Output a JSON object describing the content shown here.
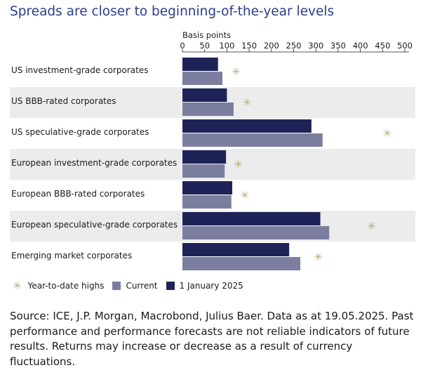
{
  "title": "Spreads are closer to beginning-of-the-year levels",
  "chart_data": {
    "type": "bar",
    "orientation": "horizontal",
    "units_label": "Basis points",
    "xlim": [
      0,
      500
    ],
    "xticks": [
      "0",
      "50",
      "100",
      "150",
      "200",
      "250",
      "300",
      "350",
      "400",
      "450",
      "500"
    ],
    "categories": [
      "US investment-grade corporates",
      "US BBB-rated corporates",
      "US speculative-grade corporates",
      "European investment-grade corporates",
      "European BBB-rated corporates",
      "European speculative-grade corporates",
      "Emerging market corporates"
    ],
    "series": [
      {
        "name": "1 January 2025",
        "color": "#1e2357",
        "values": [
          80,
          100,
          290,
          98,
          112,
          310,
          240
        ]
      },
      {
        "name": "Current",
        "color": "#7c7ea0",
        "values": [
          90,
          115,
          315,
          95,
          110,
          330,
          265
        ]
      }
    ],
    "markers": {
      "name": "Year-to-date highs",
      "color": "#b9ab78",
      "values": [
        120,
        145,
        460,
        125,
        140,
        425,
        305
      ]
    },
    "legend_position": "bottom-left",
    "grid": false
  },
  "legend": {
    "ytd": "Year-to-date highs",
    "current": "Current",
    "jan": "1 January 2025"
  },
  "source": "Source: ICE, J.P. Morgan, Macrobond, Julius Baer. Data as at 19.05.2025. Past performance and performance forecasts are not relia­ble indicators of future results. Returns may increase or decrease as a re­sult of currency fluctuations."
}
